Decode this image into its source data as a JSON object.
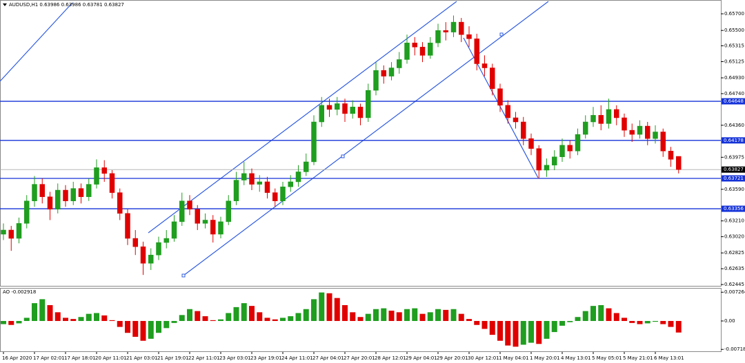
{
  "chart_data": [
    {
      "type": "candlestick",
      "title": "AUDUSD,H1  0.63986 0.63986 0.63781 0.63827",
      "categories": [
        "16 Apr 2020",
        null,
        null,
        null,
        "17 Apr 02:01",
        null,
        null,
        null,
        "17 Apr 18:01",
        null,
        null,
        null,
        "20 Apr 11:01",
        null,
        null,
        null,
        "21 Apr 03:01",
        null,
        null,
        null,
        "21 Apr 19:01",
        null,
        null,
        null,
        "22 Apr 11:01",
        null,
        null,
        null,
        "23 Apr 03:01",
        null,
        null,
        null,
        "23 Apr 19:01",
        null,
        null,
        null,
        "24 Apr 11:01",
        null,
        null,
        null,
        "27 Apr 04:01",
        null,
        null,
        null,
        "27 Apr 20:01",
        null,
        null,
        null,
        "28 Apr 12:01",
        null,
        null,
        null,
        "29 Apr 04:01",
        null,
        null,
        null,
        "29 Apr 20:01",
        null,
        null,
        null,
        "30 Apr 12:01",
        null,
        null,
        null,
        "1 May 04:01",
        null,
        null,
        null,
        "1 May 20:01",
        null,
        null,
        null,
        "4 May 13:01",
        null,
        null,
        null,
        "5 May 05:01",
        null,
        null,
        null,
        "5 May 21:01",
        null,
        null,
        null,
        "6 May 13:01",
        null,
        null,
        null
      ],
      "open": [
        0.6305,
        0.631,
        0.63,
        0.6318,
        0.6345,
        0.6365,
        0.635,
        0.6335,
        0.6358,
        0.6345,
        0.636,
        0.635,
        0.6365,
        0.6385,
        0.6378,
        0.6355,
        0.633,
        0.63,
        0.629,
        0.627,
        0.628,
        0.6295,
        0.63,
        0.632,
        0.6345,
        0.6335,
        0.6318,
        0.6322,
        0.6305,
        0.632,
        0.6345,
        0.637,
        0.6378,
        0.6365,
        0.6368,
        0.6355,
        0.6345,
        0.6362,
        0.6368,
        0.638,
        0.6392,
        0.644,
        0.646,
        0.6455,
        0.6462,
        0.645,
        0.6458,
        0.6445,
        0.6478,
        0.6502,
        0.6495,
        0.6505,
        0.6515,
        0.6535,
        0.653,
        0.652,
        0.6535,
        0.655,
        0.6548,
        0.656,
        0.6545,
        0.654,
        0.651,
        0.6505,
        0.648,
        0.646,
        0.6445,
        0.644,
        0.642,
        0.6408,
        0.6382,
        0.6388,
        0.6398,
        0.6412,
        0.6405,
        0.6425,
        0.644,
        0.6448,
        0.6438,
        0.6455,
        0.6445,
        0.643,
        0.6425,
        0.6435,
        0.642,
        0.6428,
        0.6405,
        0.63986
      ],
      "high": [
        0.6318,
        0.6315,
        0.6325,
        0.6352,
        0.6375,
        0.6372,
        0.6356,
        0.6366,
        0.6364,
        0.6368,
        0.6366,
        0.6372,
        0.6395,
        0.6394,
        0.6382,
        0.636,
        0.6335,
        0.631,
        0.6296,
        0.6288,
        0.6302,
        0.631,
        0.6328,
        0.6355,
        0.6352,
        0.634,
        0.633,
        0.6328,
        0.6326,
        0.6352,
        0.638,
        0.6392,
        0.6384,
        0.6376,
        0.6374,
        0.636,
        0.6368,
        0.6376,
        0.6388,
        0.6402,
        0.6448,
        0.647,
        0.6468,
        0.647,
        0.6468,
        0.6466,
        0.6462,
        0.6486,
        0.6512,
        0.6508,
        0.6512,
        0.6524,
        0.6545,
        0.6542,
        0.6536,
        0.6542,
        0.6558,
        0.656,
        0.6568,
        0.6565,
        0.6555,
        0.6546,
        0.652,
        0.651,
        0.6486,
        0.6466,
        0.6452,
        0.6446,
        0.6426,
        0.6412,
        0.6396,
        0.6406,
        0.642,
        0.6418,
        0.6432,
        0.6448,
        0.6458,
        0.646,
        0.6468,
        0.646,
        0.645,
        0.6438,
        0.6442,
        0.644,
        0.6436,
        0.6432,
        0.641,
        0.63986
      ],
      "low": [
        0.6298,
        0.6285,
        0.6294,
        0.6312,
        0.6338,
        0.6342,
        0.6322,
        0.633,
        0.6338,
        0.634,
        0.6342,
        0.6345,
        0.636,
        0.6368,
        0.6348,
        0.6322,
        0.6292,
        0.628,
        0.6256,
        0.6262,
        0.6274,
        0.6288,
        0.6296,
        0.6315,
        0.6328,
        0.631,
        0.6312,
        0.6295,
        0.63,
        0.6316,
        0.634,
        0.6364,
        0.6358,
        0.6356,
        0.6348,
        0.6338,
        0.634,
        0.6356,
        0.6362,
        0.6375,
        0.6388,
        0.6434,
        0.6446,
        0.6448,
        0.644,
        0.6444,
        0.6436,
        0.644,
        0.6472,
        0.6486,
        0.649,
        0.6498,
        0.651,
        0.652,
        0.6512,
        0.6516,
        0.653,
        0.6538,
        0.6542,
        0.6536,
        0.653,
        0.6502,
        0.6495,
        0.6472,
        0.6452,
        0.6438,
        0.6432,
        0.6412,
        0.64,
        0.6372,
        0.6374,
        0.6382,
        0.6392,
        0.6396,
        0.64,
        0.642,
        0.6434,
        0.643,
        0.6432,
        0.6436,
        0.6422,
        0.6416,
        0.642,
        0.6412,
        0.6414,
        0.6398,
        0.6386,
        0.63781
      ],
      "close": [
        0.631,
        0.63,
        0.6318,
        0.6345,
        0.6365,
        0.635,
        0.6335,
        0.6358,
        0.6345,
        0.636,
        0.635,
        0.6365,
        0.6385,
        0.6378,
        0.6355,
        0.633,
        0.63,
        0.629,
        0.627,
        0.628,
        0.6295,
        0.63,
        0.632,
        0.6345,
        0.6335,
        0.6318,
        0.6322,
        0.6305,
        0.632,
        0.6345,
        0.637,
        0.6378,
        0.6365,
        0.6368,
        0.6355,
        0.6345,
        0.6362,
        0.6368,
        0.638,
        0.6392,
        0.644,
        0.646,
        0.6455,
        0.6462,
        0.645,
        0.6458,
        0.6445,
        0.6478,
        0.6502,
        0.6495,
        0.6505,
        0.6515,
        0.6535,
        0.653,
        0.652,
        0.6535,
        0.655,
        0.6548,
        0.656,
        0.6545,
        0.654,
        0.651,
        0.6505,
        0.648,
        0.646,
        0.6445,
        0.644,
        0.642,
        0.6408,
        0.6382,
        0.6388,
        0.6398,
        0.6412,
        0.6405,
        0.6425,
        0.644,
        0.6448,
        0.6438,
        0.6455,
        0.6445,
        0.643,
        0.6425,
        0.6435,
        0.642,
        0.6428,
        0.6405,
        0.6395,
        0.63827
      ],
      "up_color": "#1f9e1f",
      "down_color": "#e00000",
      "ylim": [
        0.62429,
        0.65866
      ],
      "yticks": [
        {
          "value": 0.657,
          "label": "0.65700"
        },
        {
          "value": 0.655,
          "label": "0.65500"
        },
        {
          "value": 0.65315,
          "label": "0.65315"
        },
        {
          "value": 0.65125,
          "label": "0.65125"
        },
        {
          "value": 0.6493,
          "label": "0.64930"
        },
        {
          "value": 0.6474,
          "label": "0.64740"
        },
        {
          "value": 0.6436,
          "label": "0.64360"
        },
        {
          "value": 0.63975,
          "label": "0.63975"
        },
        {
          "value": 0.6359,
          "label": "0.63590"
        },
        {
          "value": 0.6321,
          "label": "0.63210"
        },
        {
          "value": 0.6302,
          "label": "0.63020"
        },
        {
          "value": 0.62825,
          "label": "0.62825"
        },
        {
          "value": 0.62635,
          "label": "0.62635"
        },
        {
          "value": 0.62445,
          "label": "0.62445"
        }
      ],
      "hlines": [
        0.64648,
        0.64178,
        0.63721,
        0.63356
      ],
      "hline_color": "#1432d8",
      "current_price": 0.63827
    },
    {
      "type": "bar",
      "title": "AO -0.002918",
      "values": [
        -0.0008,
        -0.001,
        -0.0006,
        0.0008,
        0.0045,
        0.0055,
        0.004,
        0.0022,
        0.0008,
        0.0005,
        0.001,
        0.0018,
        0.002,
        0.0014,
        0.0002,
        -0.0015,
        -0.003,
        -0.004,
        -0.005,
        -0.0045,
        -0.003,
        -0.0018,
        -0.0005,
        0.0015,
        0.003,
        0.0025,
        0.0012,
        0.0002,
        0.0004,
        0.002,
        0.0035,
        0.0045,
        0.0038,
        0.0022,
        0.0008,
        0.0004,
        0.0008,
        0.0012,
        0.002,
        0.003,
        0.0055,
        0.0072,
        0.007,
        0.0058,
        0.004,
        0.0022,
        0.001,
        0.0018,
        0.003,
        0.0032,
        0.0026,
        0.0022,
        0.003,
        0.0032,
        0.0018,
        0.0022,
        0.003,
        0.0028,
        0.003,
        0.0018,
        0.0005,
        -0.001,
        -0.002,
        -0.0035,
        -0.005,
        -0.0062,
        -0.0065,
        -0.006,
        -0.0055,
        -0.0058,
        -0.0045,
        -0.0028,
        -0.0012,
        -0.0003,
        0.001,
        0.0025,
        0.0038,
        0.004,
        0.0032,
        0.002,
        0.0008,
        -0.0005,
        -0.0008,
        -0.0006,
        -0.0002,
        -0.0008,
        -0.0015,
        -0.002918
      ],
      "up_color": "#1f9e1f",
      "down_color": "#e00000",
      "ylim": [
        -0.00766,
        0.00835
      ],
      "yticks": [
        0.007264,
        {
          "value": 0,
          "label": "0.00"
        },
        -0.00718
      ]
    }
  ]
}
